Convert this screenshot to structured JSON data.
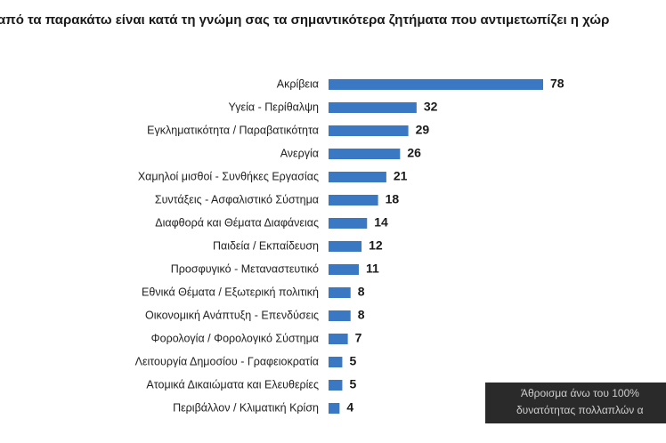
{
  "chart_data": {
    "type": "bar",
    "orientation": "horizontal",
    "title": "από τα παρακάτω είναι κατά τη γνώμη σας τα σημαντικότερα ζητήματα που αντιμετωπίζει η χώρ",
    "categories": [
      "Ακρίβεια",
      "Υγεία - Περίθαλψη",
      "Εγκληματικότητα / Παραβατικότητα",
      "Ανεργία",
      "Χαμηλοί μισθοί - Συνθήκες Εργασίας",
      "Συντάξεις - Ασφαλιστικό Σύστημα",
      "Διαφθορά και Θέματα Διαφάνειας",
      "Παιδεία / Εκπαίδευση",
      "Προσφυγικό - Μεταναστευτικό",
      "Εθνικά Θέματα / Εξωτερική πολιτική",
      "Οικονομική Ανάπτυξη - Επενδύσεις",
      "Φορολογία / Φορολογικό Σύστημα",
      "Λειτουργία Δημοσίου - Γραφειοκρατία",
      "Ατομικά Δικαιώματα και Ελευθερίες",
      "Περιβάλλον / Κλιματική Κρίση"
    ],
    "values": [
      78,
      32,
      29,
      26,
      21,
      18,
      14,
      12,
      11,
      8,
      8,
      7,
      5,
      5,
      4
    ],
    "color": "#3a78c3",
    "annotations": [
      "Άθροισμα άνω του 100%",
      "δυνατότητας πολλαπλών α"
    ]
  }
}
